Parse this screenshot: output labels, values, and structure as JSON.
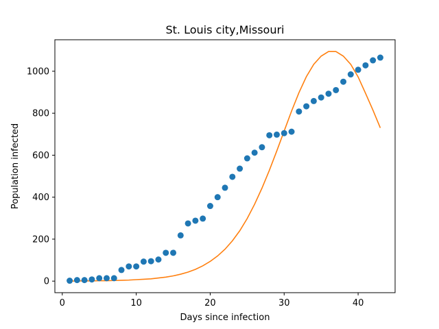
{
  "chart_data": {
    "type": "scatter",
    "title": "St. Louis city,Missouri",
    "xlabel": "Days since infection",
    "ylabel": "Population infected",
    "xlim": [
      -1,
      45
    ],
    "ylim": [
      -55,
      1150
    ],
    "x_ticks": [
      0,
      10,
      20,
      30,
      40
    ],
    "y_ticks": [
      0,
      200,
      400,
      600,
      800,
      1000
    ],
    "grid": false,
    "series": [
      {
        "kind": "scatter",
        "color": "#1f77b4",
        "points": [
          [
            1,
            2
          ],
          [
            2,
            5
          ],
          [
            3,
            5
          ],
          [
            4,
            8
          ],
          [
            5,
            14
          ],
          [
            6,
            14
          ],
          [
            7,
            14
          ],
          [
            8,
            53
          ],
          [
            9,
            70
          ],
          [
            10,
            70
          ],
          [
            11,
            93
          ],
          [
            12,
            95
          ],
          [
            13,
            103
          ],
          [
            14,
            135
          ],
          [
            15,
            135
          ],
          [
            16,
            218
          ],
          [
            17,
            275
          ],
          [
            18,
            288
          ],
          [
            19,
            298
          ],
          [
            20,
            358
          ],
          [
            21,
            400
          ],
          [
            22,
            445
          ],
          [
            23,
            497
          ],
          [
            24,
            536
          ],
          [
            25,
            585
          ],
          [
            26,
            612
          ],
          [
            27,
            638
          ],
          [
            28,
            695
          ],
          [
            29,
            698
          ],
          [
            30,
            705
          ],
          [
            31,
            712
          ],
          [
            32,
            808
          ],
          [
            33,
            833
          ],
          [
            34,
            858
          ],
          [
            35,
            875
          ],
          [
            36,
            893
          ],
          [
            37,
            910
          ],
          [
            38,
            950
          ],
          [
            39,
            985
          ],
          [
            40,
            1007
          ],
          [
            41,
            1028
          ],
          [
            42,
            1052
          ],
          [
            43,
            1065
          ]
        ]
      },
      {
        "kind": "line",
        "color": "#ff7f0e",
        "points": [
          [
            1,
            0
          ],
          [
            2,
            1
          ],
          [
            3,
            1
          ],
          [
            4,
            1
          ],
          [
            5,
            2
          ],
          [
            6,
            2
          ],
          [
            7,
            3
          ],
          [
            8,
            4
          ],
          [
            9,
            5
          ],
          [
            10,
            7
          ],
          [
            11,
            9
          ],
          [
            12,
            11
          ],
          [
            13,
            15
          ],
          [
            14,
            19
          ],
          [
            15,
            25
          ],
          [
            16,
            33
          ],
          [
            17,
            43
          ],
          [
            18,
            56
          ],
          [
            19,
            73
          ],
          [
            20,
            94
          ],
          [
            21,
            120
          ],
          [
            22,
            152
          ],
          [
            23,
            192
          ],
          [
            24,
            240
          ],
          [
            25,
            298
          ],
          [
            26,
            366
          ],
          [
            27,
            443
          ],
          [
            28,
            528
          ],
          [
            29,
            620
          ],
          [
            30,
            715
          ],
          [
            31,
            810
          ],
          [
            32,
            898
          ],
          [
            33,
            974
          ],
          [
            34,
            1033
          ],
          [
            35,
            1072
          ],
          [
            36,
            1094
          ],
          [
            37,
            1094
          ],
          [
            38,
            1072
          ],
          [
            39,
            1033
          ],
          [
            40,
            973
          ],
          [
            41,
            895
          ],
          [
            42,
            815
          ],
          [
            43,
            730
          ]
        ]
      }
    ]
  }
}
